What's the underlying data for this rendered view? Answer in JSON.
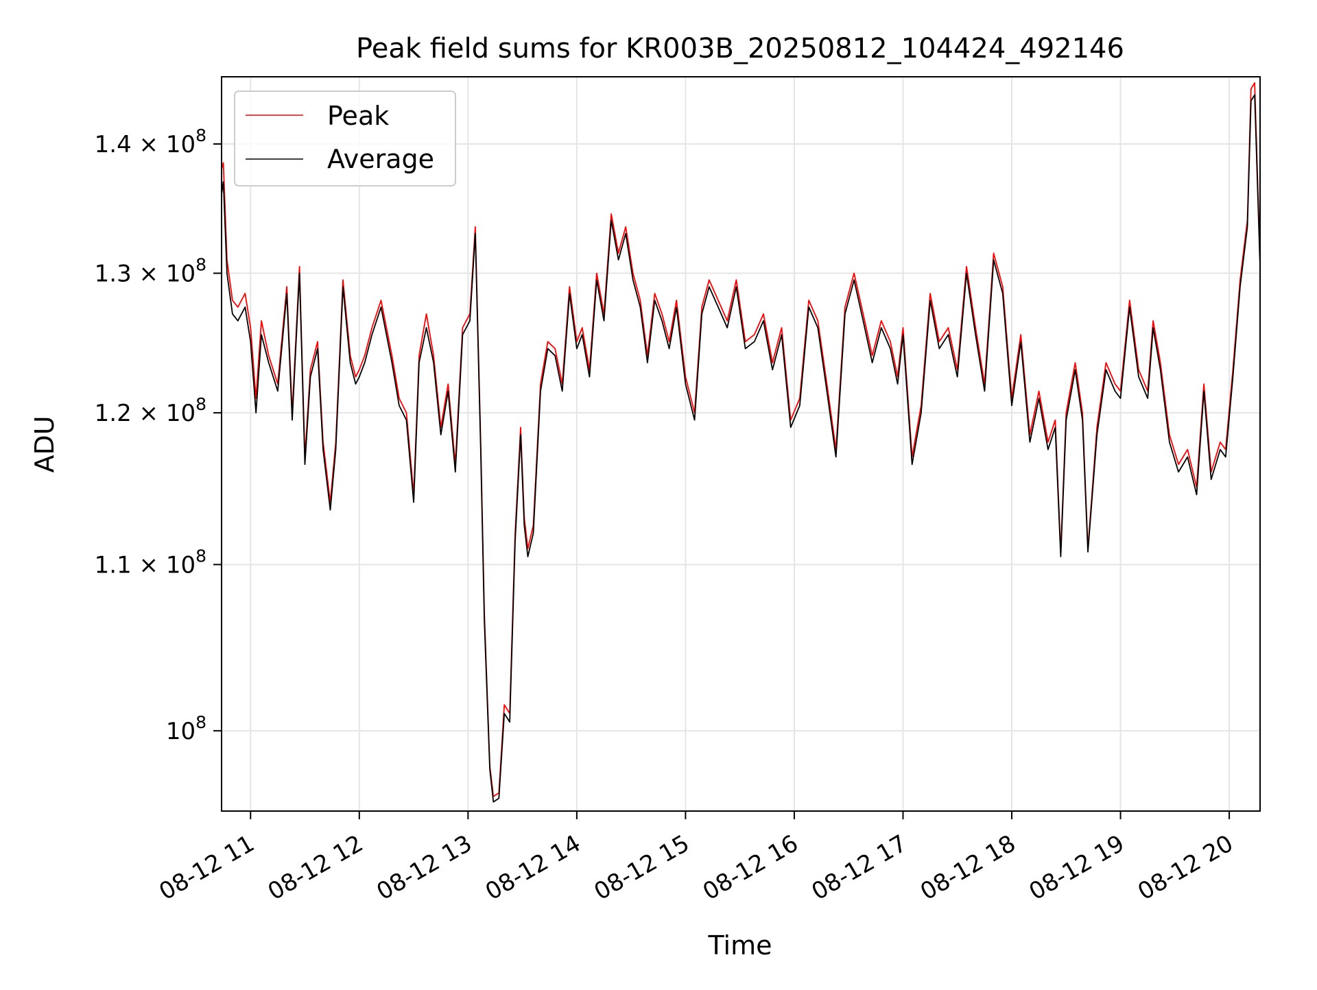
{
  "chart_data": {
    "type": "line",
    "title": "Peak field sums for KR003B_20250812_104424_492146",
    "xlabel": "Time",
    "ylabel": "ADU",
    "x_unit": "datetime",
    "xlim": [
      "2025-08-12 10:44",
      "2025-08-12 20:17"
    ],
    "ylim": [
      95500000,
      145500000
    ],
    "yscale": "log",
    "grid": true,
    "legend": "top-left",
    "x_ticks": [
      {
        "value": "2025-08-12 11:00",
        "label": "08-12 11"
      },
      {
        "value": "2025-08-12 12:00",
        "label": "08-12 12"
      },
      {
        "value": "2025-08-12 13:00",
        "label": "08-12 13"
      },
      {
        "value": "2025-08-12 14:00",
        "label": "08-12 14"
      },
      {
        "value": "2025-08-12 15:00",
        "label": "08-12 15"
      },
      {
        "value": "2025-08-12 16:00",
        "label": "08-12 16"
      },
      {
        "value": "2025-08-12 17:00",
        "label": "08-12 17"
      },
      {
        "value": "2025-08-12 18:00",
        "label": "08-12 18"
      },
      {
        "value": "2025-08-12 19:00",
        "label": "08-12 19"
      },
      {
        "value": "2025-08-12 20:00",
        "label": "08-12 20"
      }
    ],
    "y_ticks": [
      {
        "value": 100000000,
        "mantissa": "",
        "exponent": "8"
      },
      {
        "value": 110000000,
        "mantissa": "1.1",
        "exponent": "8"
      },
      {
        "value": 120000000,
        "mantissa": "1.2",
        "exponent": "8"
      },
      {
        "value": 130000000,
        "mantissa": "1.3",
        "exponent": "8"
      },
      {
        "value": 140000000,
        "mantissa": "1.4",
        "exponent": "8"
      }
    ],
    "series": [
      {
        "name": "Peak",
        "color": "#ff0000",
        "x": [
          "2025-08-12 10:44",
          "2025-08-12 10:45",
          "2025-08-12 10:47",
          "2025-08-12 10:50",
          "2025-08-12 10:53",
          "2025-08-12 10:57",
          "2025-08-12 11:00",
          "2025-08-12 11:03",
          "2025-08-12 11:06",
          "2025-08-12 11:10",
          "2025-08-12 11:15",
          "2025-08-12 11:20",
          "2025-08-12 11:23",
          "2025-08-12 11:27",
          "2025-08-12 11:30",
          "2025-08-12 11:33",
          "2025-08-12 11:37",
          "2025-08-12 11:40",
          "2025-08-12 11:44",
          "2025-08-12 11:47",
          "2025-08-12 11:51",
          "2025-08-12 11:55",
          "2025-08-12 11:58",
          "2025-08-12 12:00",
          "2025-08-12 12:03",
          "2025-08-12 12:07",
          "2025-08-12 12:12",
          "2025-08-12 12:18",
          "2025-08-12 12:22",
          "2025-08-12 12:26",
          "2025-08-12 12:30",
          "2025-08-12 12:33",
          "2025-08-12 12:37",
          "2025-08-12 12:41",
          "2025-08-12 12:45",
          "2025-08-12 12:49",
          "2025-08-12 12:53",
          "2025-08-12 12:57",
          "2025-08-12 13:01",
          "2025-08-12 13:04",
          "2025-08-12 13:07",
          "2025-08-12 13:09",
          "2025-08-12 13:12",
          "2025-08-12 13:14",
          "2025-08-12 13:17",
          "2025-08-12 13:20",
          "2025-08-12 13:23",
          "2025-08-12 13:26",
          "2025-08-12 13:29",
          "2025-08-12 13:31",
          "2025-08-12 13:33",
          "2025-08-12 13:36",
          "2025-08-12 13:40",
          "2025-08-12 13:44",
          "2025-08-12 13:48",
          "2025-08-12 13:52",
          "2025-08-12 13:56",
          "2025-08-12 14:00",
          "2025-08-12 14:03",
          "2025-08-12 14:07",
          "2025-08-12 14:11",
          "2025-08-12 14:15",
          "2025-08-12 14:19",
          "2025-08-12 14:23",
          "2025-08-12 14:27",
          "2025-08-12 14:31",
          "2025-08-12 14:35",
          "2025-08-12 14:39",
          "2025-08-12 14:43",
          "2025-08-12 14:47",
          "2025-08-12 14:51",
          "2025-08-12 14:55",
          "2025-08-12 15:00",
          "2025-08-12 15:05",
          "2025-08-12 15:09",
          "2025-08-12 15:13",
          "2025-08-12 15:18",
          "2025-08-12 15:23",
          "2025-08-12 15:28",
          "2025-08-12 15:33",
          "2025-08-12 15:38",
          "2025-08-12 15:43",
          "2025-08-12 15:48",
          "2025-08-12 15:53",
          "2025-08-12 15:58",
          "2025-08-12 16:03",
          "2025-08-12 16:08",
          "2025-08-12 16:13",
          "2025-08-12 16:18",
          "2025-08-12 16:23",
          "2025-08-12 16:28",
          "2025-08-12 16:33",
          "2025-08-12 16:38",
          "2025-08-12 16:43",
          "2025-08-12 16:48",
          "2025-08-12 16:53",
          "2025-08-12 16:57",
          "2025-08-12 17:00",
          "2025-08-12 17:05",
          "2025-08-12 17:10",
          "2025-08-12 17:15",
          "2025-08-12 17:20",
          "2025-08-12 17:25",
          "2025-08-12 17:30",
          "2025-08-12 17:35",
          "2025-08-12 17:40",
          "2025-08-12 17:45",
          "2025-08-12 17:50",
          "2025-08-12 17:55",
          "2025-08-12 18:00",
          "2025-08-12 18:05",
          "2025-08-12 18:10",
          "2025-08-12 18:15",
          "2025-08-12 18:20",
          "2025-08-12 18:24",
          "2025-08-12 18:27",
          "2025-08-12 18:30",
          "2025-08-12 18:35",
          "2025-08-12 18:39",
          "2025-08-12 18:42",
          "2025-08-12 18:47",
          "2025-08-12 18:52",
          "2025-08-12 18:57",
          "2025-08-12 19:00",
          "2025-08-12 19:05",
          "2025-08-12 19:10",
          "2025-08-12 19:15",
          "2025-08-12 19:18",
          "2025-08-12 19:22",
          "2025-08-12 19:27",
          "2025-08-12 19:32",
          "2025-08-12 19:37",
          "2025-08-12 19:42",
          "2025-08-12 19:46",
          "2025-08-12 19:50",
          "2025-08-12 19:55",
          "2025-08-12 19:58",
          "2025-08-12 20:02",
          "2025-08-12 20:06",
          "2025-08-12 20:10",
          "2025-08-12 20:12",
          "2025-08-12 20:14",
          "2025-08-12 20:17"
        ],
        "values": [
          138000000,
          138500000,
          131000000,
          128000000,
          127500000,
          128500000,
          126000000,
          121000000,
          126500000,
          124000000,
          122000000,
          129000000,
          120000000,
          130500000,
          117000000,
          123000000,
          125000000,
          118000000,
          114000000,
          118000000,
          129500000,
          124000000,
          122500000,
          123000000,
          124000000,
          126000000,
          128000000,
          124000000,
          121000000,
          120000000,
          114500000,
          124000000,
          127000000,
          124000000,
          119000000,
          122000000,
          116500000,
          126000000,
          127000000,
          133500000,
          118000000,
          107000000,
          98000000,
          96300000,
          96500000,
          101500000,
          101000000,
          112000000,
          119000000,
          113000000,
          111000000,
          112500000,
          122000000,
          125000000,
          124500000,
          122000000,
          129000000,
          125000000,
          126000000,
          123000000,
          130000000,
          127000000,
          134500000,
          131500000,
          133500000,
          130000000,
          128000000,
          124000000,
          128500000,
          127000000,
          125000000,
          128000000,
          122500000,
          120000000,
          127500000,
          129500000,
          128000000,
          126500000,
          129500000,
          125000000,
          125500000,
          127000000,
          123500000,
          126000000,
          119500000,
          121000000,
          128000000,
          126500000,
          122000000,
          117500000,
          127500000,
          130000000,
          127000000,
          124000000,
          126500000,
          125000000,
          122500000,
          126000000,
          117000000,
          120500000,
          128500000,
          125000000,
          126000000,
          123000000,
          130500000,
          126000000,
          122000000,
          131500000,
          129000000,
          121000000,
          125500000,
          118500000,
          121500000,
          118000000,
          119500000,
          110800000,
          120000000,
          123500000,
          120000000,
          111000000,
          119000000,
          123500000,
          122000000,
          121500000,
          128000000,
          123000000,
          121500000,
          126500000,
          123500000,
          118500000,
          116500000,
          117500000,
          115000000,
          122000000,
          116000000,
          118000000,
          117500000,
          123000000,
          129500000,
          134000000,
          144500000,
          145000000,
          131000000
        ]
      },
      {
        "name": "Average",
        "color": "#000000",
        "x": [
          "2025-08-12 10:44",
          "2025-08-12 10:45",
          "2025-08-12 10:47",
          "2025-08-12 10:50",
          "2025-08-12 10:53",
          "2025-08-12 10:57",
          "2025-08-12 11:00",
          "2025-08-12 11:03",
          "2025-08-12 11:06",
          "2025-08-12 11:10",
          "2025-08-12 11:15",
          "2025-08-12 11:20",
          "2025-08-12 11:23",
          "2025-08-12 11:27",
          "2025-08-12 11:30",
          "2025-08-12 11:33",
          "2025-08-12 11:37",
          "2025-08-12 11:40",
          "2025-08-12 11:44",
          "2025-08-12 11:47",
          "2025-08-12 11:51",
          "2025-08-12 11:55",
          "2025-08-12 11:58",
          "2025-08-12 12:00",
          "2025-08-12 12:03",
          "2025-08-12 12:07",
          "2025-08-12 12:12",
          "2025-08-12 12:18",
          "2025-08-12 12:22",
          "2025-08-12 12:26",
          "2025-08-12 12:30",
          "2025-08-12 12:33",
          "2025-08-12 12:37",
          "2025-08-12 12:41",
          "2025-08-12 12:45",
          "2025-08-12 12:49",
          "2025-08-12 12:53",
          "2025-08-12 12:57",
          "2025-08-12 13:01",
          "2025-08-12 13:04",
          "2025-08-12 13:07",
          "2025-08-12 13:09",
          "2025-08-12 13:12",
          "2025-08-12 13:14",
          "2025-08-12 13:17",
          "2025-08-12 13:20",
          "2025-08-12 13:23",
          "2025-08-12 13:26",
          "2025-08-12 13:29",
          "2025-08-12 13:31",
          "2025-08-12 13:33",
          "2025-08-12 13:36",
          "2025-08-12 13:40",
          "2025-08-12 13:44",
          "2025-08-12 13:48",
          "2025-08-12 13:52",
          "2025-08-12 13:56",
          "2025-08-12 14:00",
          "2025-08-12 14:03",
          "2025-08-12 14:07",
          "2025-08-12 14:11",
          "2025-08-12 14:15",
          "2025-08-12 14:19",
          "2025-08-12 14:23",
          "2025-08-12 14:27",
          "2025-08-12 14:31",
          "2025-08-12 14:35",
          "2025-08-12 14:39",
          "2025-08-12 14:43",
          "2025-08-12 14:47",
          "2025-08-12 14:51",
          "2025-08-12 14:55",
          "2025-08-12 15:00",
          "2025-08-12 15:05",
          "2025-08-12 15:09",
          "2025-08-12 15:13",
          "2025-08-12 15:18",
          "2025-08-12 15:23",
          "2025-08-12 15:28",
          "2025-08-12 15:33",
          "2025-08-12 15:38",
          "2025-08-12 15:43",
          "2025-08-12 15:48",
          "2025-08-12 15:53",
          "2025-08-12 15:58",
          "2025-08-12 16:03",
          "2025-08-12 16:08",
          "2025-08-12 16:13",
          "2025-08-12 16:18",
          "2025-08-12 16:23",
          "2025-08-12 16:28",
          "2025-08-12 16:33",
          "2025-08-12 16:38",
          "2025-08-12 16:43",
          "2025-08-12 16:48",
          "2025-08-12 16:53",
          "2025-08-12 16:57",
          "2025-08-12 17:00",
          "2025-08-12 17:05",
          "2025-08-12 17:10",
          "2025-08-12 17:15",
          "2025-08-12 17:20",
          "2025-08-12 17:25",
          "2025-08-12 17:30",
          "2025-08-12 17:35",
          "2025-08-12 17:40",
          "2025-08-12 17:45",
          "2025-08-12 17:50",
          "2025-08-12 17:55",
          "2025-08-12 18:00",
          "2025-08-12 18:05",
          "2025-08-12 18:10",
          "2025-08-12 18:15",
          "2025-08-12 18:20",
          "2025-08-12 18:24",
          "2025-08-12 18:27",
          "2025-08-12 18:30",
          "2025-08-12 18:35",
          "2025-08-12 18:39",
          "2025-08-12 18:42",
          "2025-08-12 18:47",
          "2025-08-12 18:52",
          "2025-08-12 18:57",
          "2025-08-12 19:00",
          "2025-08-12 19:05",
          "2025-08-12 19:10",
          "2025-08-12 19:15",
          "2025-08-12 19:18",
          "2025-08-12 19:22",
          "2025-08-12 19:27",
          "2025-08-12 19:32",
          "2025-08-12 19:37",
          "2025-08-12 19:42",
          "2025-08-12 19:46",
          "2025-08-12 19:50",
          "2025-08-12 19:55",
          "2025-08-12 19:58",
          "2025-08-12 20:02",
          "2025-08-12 20:06",
          "2025-08-12 20:10",
          "2025-08-12 20:12",
          "2025-08-12 20:14",
          "2025-08-12 20:17"
        ],
        "values": [
          136000000,
          137000000,
          130000000,
          127000000,
          126500000,
          127500000,
          125000000,
          120000000,
          125500000,
          123500000,
          121500000,
          128500000,
          119500000,
          130000000,
          116500000,
          122500000,
          124500000,
          117500000,
          113500000,
          117500000,
          129000000,
          123500000,
          122000000,
          122500000,
          123500000,
          125500000,
          127500000,
          123500000,
          120500000,
          119500000,
          114000000,
          123500000,
          126000000,
          123500000,
          118500000,
          121500000,
          116000000,
          125500000,
          126500000,
          133000000,
          117500000,
          106500000,
          97800000,
          96000000,
          96200000,
          101000000,
          100500000,
          111500000,
          118500000,
          112500000,
          110500000,
          112000000,
          121500000,
          124500000,
          124000000,
          121500000,
          128500000,
          124500000,
          125500000,
          122500000,
          129500000,
          126500000,
          134000000,
          131000000,
          133000000,
          129500000,
          127500000,
          123500000,
          128000000,
          126500000,
          124500000,
          127500000,
          122000000,
          119500000,
          127000000,
          129000000,
          127500000,
          126000000,
          129000000,
          124500000,
          125000000,
          126500000,
          123000000,
          125500000,
          119000000,
          120500000,
          127500000,
          126000000,
          121500000,
          117000000,
          127000000,
          129500000,
          126500000,
          123500000,
          126000000,
          124500000,
          122000000,
          125500000,
          116500000,
          120000000,
          128000000,
          124500000,
          125500000,
          122500000,
          130000000,
          125500000,
          121500000,
          131000000,
          128500000,
          120500000,
          125000000,
          118000000,
          121000000,
          117500000,
          119000000,
          110500000,
          119500000,
          123000000,
          119500000,
          110800000,
          118500000,
          123000000,
          121500000,
          121000000,
          127500000,
          122500000,
          121000000,
          126000000,
          123000000,
          118000000,
          116000000,
          117000000,
          114500000,
          121500000,
          115500000,
          117500000,
          117000000,
          122500000,
          129000000,
          133500000,
          143500000,
          144000000,
          130500000
        ]
      }
    ]
  }
}
